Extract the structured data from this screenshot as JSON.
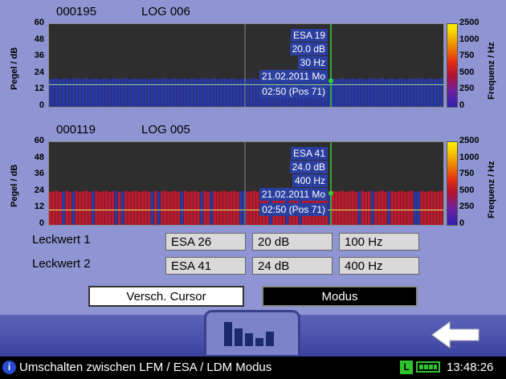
{
  "panel1": {
    "id": "000195",
    "log": "LOG 006",
    "yticks": [
      "60",
      "48",
      "36",
      "24",
      "12",
      "0"
    ],
    "rticks": [
      "2500",
      "1000",
      "750",
      "500",
      "250",
      "0"
    ],
    "ylabel": "Pegel / dB",
    "rlabel": "Frequenz / Hz",
    "info": [
      "ESA  19",
      "20.0 dB",
      "30 Hz",
      "21.02.2011 Mo",
      "02:50 (Pos 71)"
    ],
    "bar_level_db": 20,
    "bar_color": "blue"
  },
  "panel2": {
    "id": "000119",
    "log": "LOG 005",
    "yticks": [
      "60",
      "48",
      "36",
      "24",
      "12",
      "0"
    ],
    "rticks": [
      "2500",
      "1000",
      "750",
      "500",
      "250",
      "0"
    ],
    "ylabel": "Pegel / dB",
    "rlabel": "Frequenz / Hz",
    "info": [
      "ESA  41",
      "24.0 dB",
      "400 Hz",
      "21.02.2011 Mo",
      "02:50 (Pos 71)"
    ],
    "bar_level_db": 24,
    "bar_color": "red"
  },
  "leckwert1": {
    "label": "Leckwert 1",
    "esa": "ESA 26",
    "db": "20 dB",
    "hz": "100 Hz"
  },
  "leckwert2": {
    "label": "Leckwert 2",
    "esa": "ESA 41",
    "db": "24 dB",
    "hz": "400 Hz"
  },
  "buttons": {
    "cursor": "Versch. Cursor",
    "modus": "Modus"
  },
  "status": {
    "info_icon": "i",
    "text": "Umschalten zwischen LFM / ESA / LDM Modus",
    "battery_letter": "L",
    "time": "13:48:26"
  },
  "icons": {
    "histogram": "histogram-icon",
    "back": "back-arrow-icon"
  }
}
